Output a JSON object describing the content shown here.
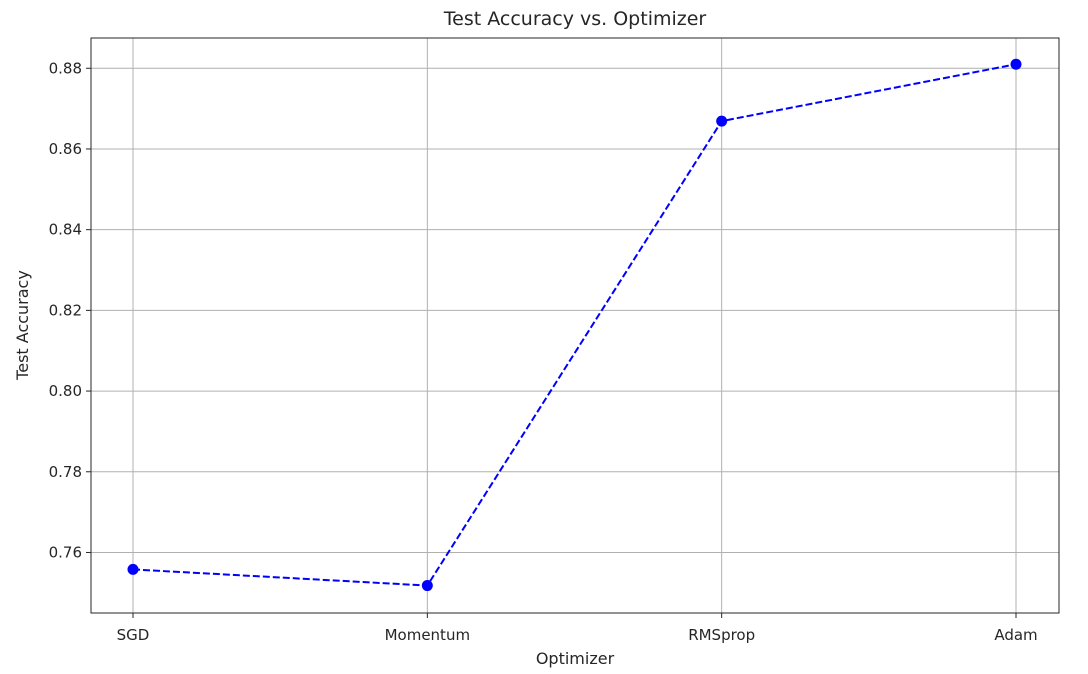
{
  "chart_data": {
    "type": "line",
    "title": "Test Accuracy vs. Optimizer",
    "xlabel": "Optimizer",
    "ylabel": "Test Accuracy",
    "categories": [
      "SGD",
      "Momentum",
      "RMSprop",
      "Adam"
    ],
    "series": [
      {
        "values": [
          0.7558,
          0.7518,
          0.8669,
          0.881
        ],
        "color": "#0000ff",
        "line_style": "dashed",
        "marker": "circle"
      }
    ],
    "ylim": [
      0.745,
      0.8875
    ],
    "yticks": [
      0.76,
      0.78,
      0.8,
      0.82,
      0.84,
      0.86,
      0.88
    ],
    "ytick_labels": [
      "0.76",
      "0.78",
      "0.80",
      "0.82",
      "0.84",
      "0.86",
      "0.88"
    ],
    "grid": true
  }
}
